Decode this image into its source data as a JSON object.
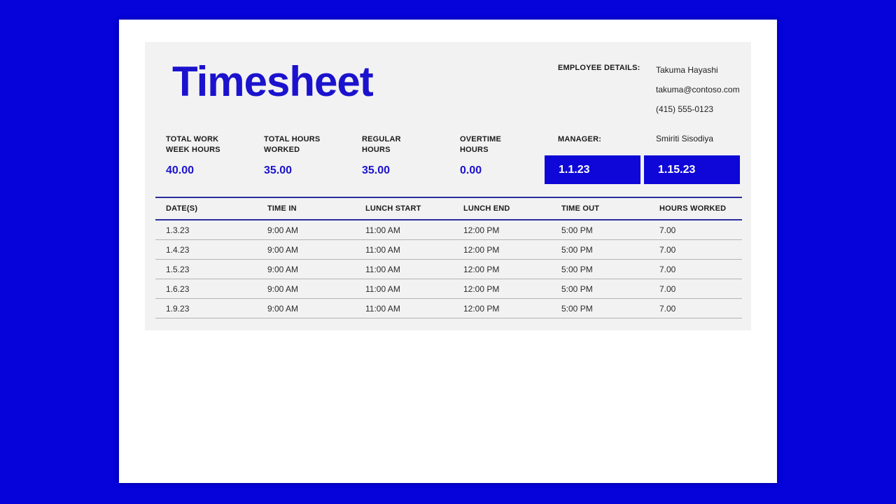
{
  "title": "Timesheet",
  "employee": {
    "label": "EMPLOYEE DETAILS:",
    "name": "Takuma Hayashi",
    "email": "takuma@contoso.com",
    "phone": "(415) 555-0123"
  },
  "manager": {
    "label": "MANAGER:",
    "name": "Smiriti Sisodiya"
  },
  "summary": [
    {
      "label1": "TOTAL WORK",
      "label2": "WEEK HOURS",
      "value": "40.00"
    },
    {
      "label1": "TOTAL HOURS",
      "label2": "WORKED",
      "value": "35.00"
    },
    {
      "label1": "REGULAR",
      "label2": "HOURS",
      "value": "35.00"
    },
    {
      "label1": "OVERTIME",
      "label2": "HOURS",
      "value": "0.00"
    }
  ],
  "period": {
    "start": "1.1.23",
    "end": "1.15.23"
  },
  "table": {
    "headers": [
      "DATE(S)",
      "TIME IN",
      "LUNCH START",
      "LUNCH END",
      "TIME OUT",
      "HOURS WORKED"
    ],
    "rows": [
      [
        "1.3.23",
        "9:00 AM",
        "11:00 AM",
        "12:00 PM",
        "5:00 PM",
        "7.00"
      ],
      [
        "1.4.23",
        "9:00 AM",
        "11:00 AM",
        "12:00 PM",
        "5:00 PM",
        "7.00"
      ],
      [
        "1.5.23",
        "9:00 AM",
        "11:00 AM",
        "12:00 PM",
        "5:00 PM",
        "7.00"
      ],
      [
        "1.6.23",
        "9:00 AM",
        "11:00 AM",
        "12:00 PM",
        "5:00 PM",
        "7.00"
      ],
      [
        "1.9.23",
        "9:00 AM",
        "11:00 AM",
        "12:00 PM",
        "5:00 PM",
        "7.00"
      ]
    ]
  },
  "colors": {
    "bg-blue": "#0502da",
    "accent-blue": "#1b12ce",
    "box-blue": "#0e07d7",
    "line-navy": "#2a2d9c",
    "panel-gray": "#f2f2f2"
  }
}
